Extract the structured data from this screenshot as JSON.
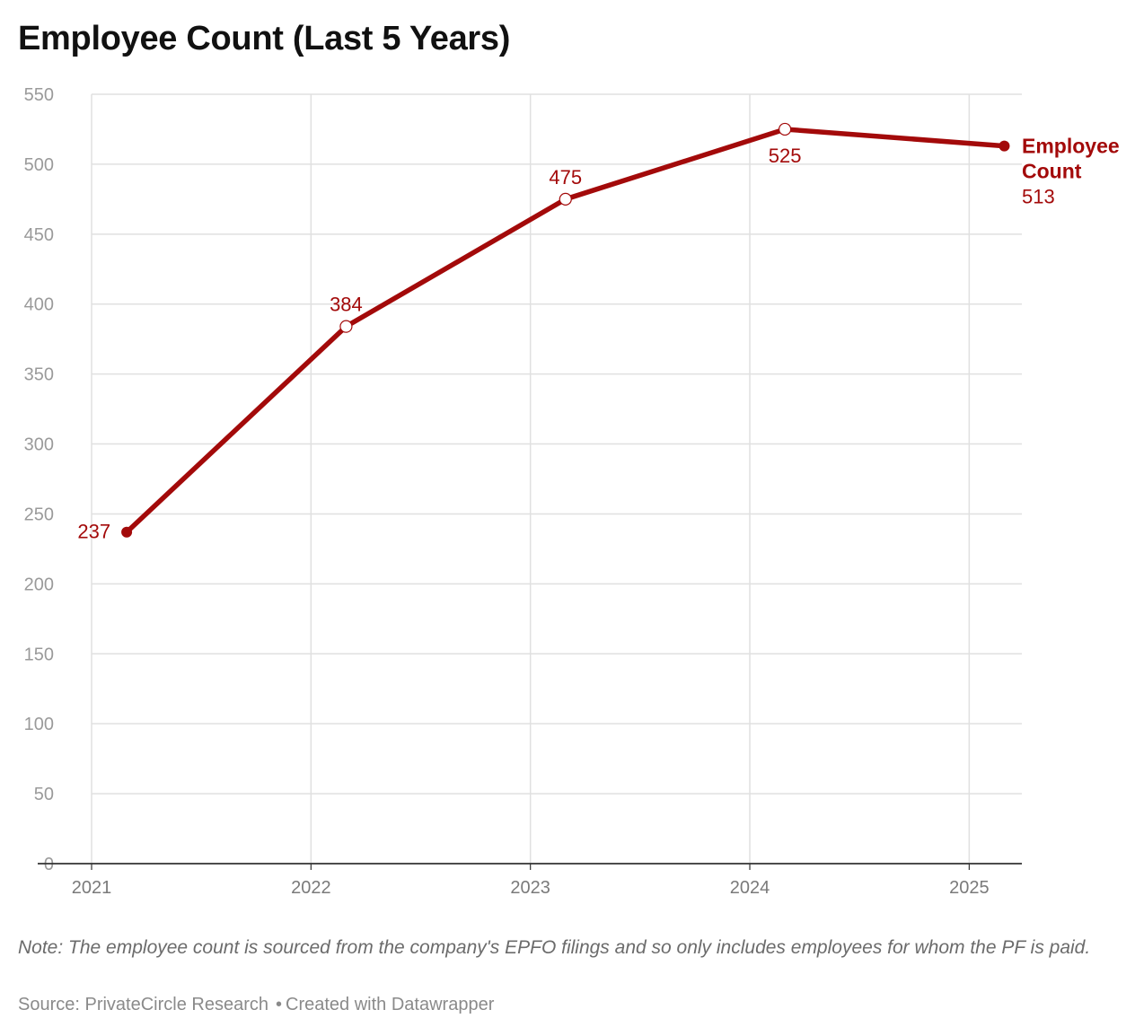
{
  "title": "Employee Count (Last 5 Years)",
  "chart_data": {
    "type": "line",
    "title": "Employee Count (Last 5 Years)",
    "x": [
      2021.16,
      2022.16,
      2023.16,
      2024.16,
      2025.16
    ],
    "x_ticks": [
      "2021",
      "2022",
      "2023",
      "2024",
      "2025"
    ],
    "y_ticks": [
      "0",
      "50",
      "100",
      "150",
      "200",
      "250",
      "300",
      "350",
      "400",
      "450",
      "500",
      "550"
    ],
    "ylim": [
      0,
      550
    ],
    "grid": true,
    "series": [
      {
        "name": "Employee Count",
        "color": "#a30a0a",
        "values": [
          237,
          384,
          475,
          525,
          513
        ],
        "value_labels": [
          "237",
          "384",
          "475",
          "525",
          "513"
        ]
      }
    ],
    "line_label": {
      "line1": "Employee",
      "line2": "Count"
    }
  },
  "notes": "Note: The employee count is sourced from the company's EPFO filings and so only includes employees for whom the PF is paid.",
  "source": {
    "text": "Source: PrivateCircle Research",
    "separator": "•",
    "credit": "Created with Datawrapper"
  }
}
